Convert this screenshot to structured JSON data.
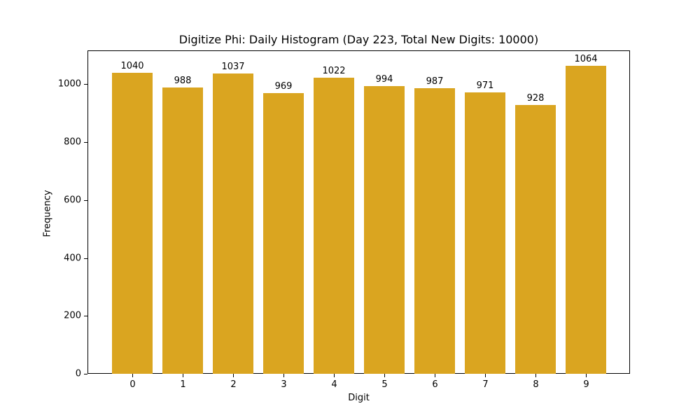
{
  "chart_data": {
    "type": "bar",
    "title": "Digitize Phi: Daily Histogram (Day 223, Total New Digits: 10000)",
    "xlabel": "Digit",
    "ylabel": "Frequency",
    "categories": [
      "0",
      "1",
      "2",
      "3",
      "4",
      "5",
      "6",
      "7",
      "8",
      "9"
    ],
    "values": [
      1040,
      988,
      1037,
      969,
      1022,
      994,
      987,
      971,
      928,
      1064
    ],
    "data_labels": [
      "1040",
      "988",
      "1037",
      "969",
      "1022",
      "994",
      "987",
      "971",
      "928",
      "1064"
    ],
    "yticks": [
      0,
      200,
      400,
      600,
      800,
      1000
    ],
    "ytick_labels": [
      "0",
      "200",
      "400",
      "600",
      "800",
      "1000"
    ],
    "ylim": [
      0,
      1117
    ],
    "bar_color": "#DAA520",
    "grid": false,
    "legend": null
  }
}
